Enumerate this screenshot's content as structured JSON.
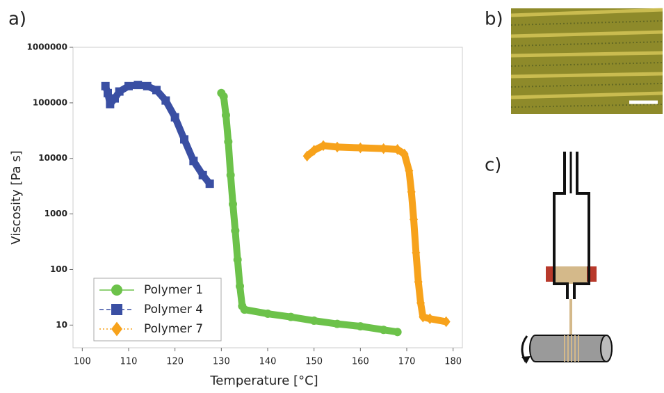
{
  "panel_labels": [
    "a)",
    "b)",
    "c)"
  ],
  "chart_data": {
    "type": "line",
    "xlabel": "Temperature [°C]",
    "ylabel": "Viscosity [Pa s]",
    "xlim": [
      98,
      182
    ],
    "xticks": [
      100,
      110,
      120,
      130,
      140,
      150,
      160,
      170,
      180
    ],
    "ylim": [
      3.9,
      1000000
    ],
    "yscale": "log",
    "yticks": [
      10,
      100,
      1000,
      10000,
      100000,
      1000000
    ],
    "legend": "lower left",
    "series": [
      {
        "name": "Polymer 1",
        "color": "#6cc24a",
        "marker": "circle",
        "linestyle": "solid",
        "x": [
          130,
          130.5,
          131,
          131.5,
          132,
          132.5,
          133,
          133.5,
          134,
          134.5,
          135,
          140,
          145,
          150,
          155,
          160,
          165,
          168
        ],
        "values": [
          150000,
          130000,
          60000,
          20000,
          5000,
          1500,
          500,
          150,
          50,
          22,
          19,
          16,
          14,
          12,
          10.5,
          9.5,
          8.2,
          7.5
        ]
      },
      {
        "name": "Polymer 4",
        "color": "#3a4fa3",
        "marker": "square",
        "linestyle": "dashed",
        "x": [
          105,
          105.5,
          106,
          107,
          108,
          110,
          112,
          114,
          116,
          118,
          120,
          122,
          124,
          126,
          127.5
        ],
        "values": [
          200000,
          150000,
          95000,
          120000,
          160000,
          200000,
          210000,
          200000,
          170000,
          110000,
          55000,
          22000,
          9000,
          5000,
          3500
        ]
      },
      {
        "name": "Polymer 7",
        "color": "#f7a21b",
        "marker": "diamond",
        "linestyle": "dotted",
        "x": [
          148.5,
          150,
          152,
          155,
          160,
          165,
          168,
          169.5,
          170.5,
          171,
          171.5,
          172,
          172.5,
          173,
          173.5,
          175,
          178.5
        ],
        "values": [
          11000,
          14000,
          17000,
          16000,
          15500,
          15000,
          14500,
          12000,
          6000,
          2500,
          800,
          200,
          60,
          25,
          14,
          13,
          11.5
        ]
      }
    ]
  }
}
